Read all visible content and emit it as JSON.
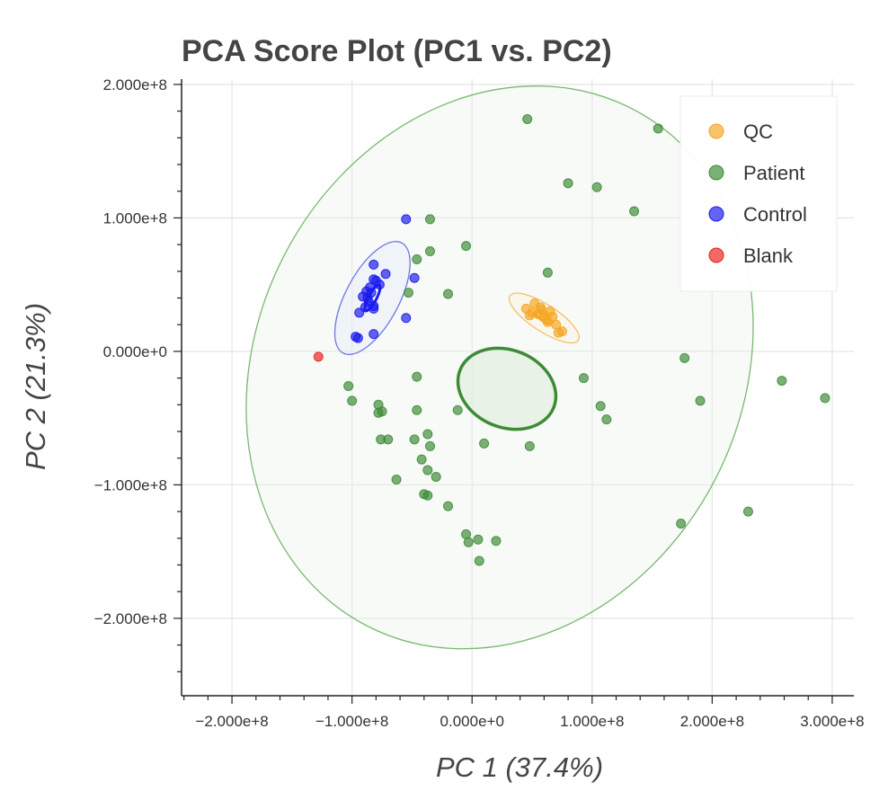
{
  "chart_data": {
    "type": "scatter",
    "title": "PCA Score Plot (PC1 vs. PC2)",
    "xlabel": "PC 1 (37.4%)",
    "ylabel": "PC 2 (21.3%)",
    "xlim": [
      -242000000,
      318000000
    ],
    "ylim": [
      -258000000,
      204000000
    ],
    "x_ticks": [
      -200000000,
      -100000000,
      0,
      100000000,
      200000000,
      300000000
    ],
    "x_tick_labels": [
      "−2.000e+8",
      "−1.000e+8",
      "0.000e+0",
      "1.000e+8",
      "2.000e+8",
      "3.000e+8"
    ],
    "y_ticks": [
      200000000,
      100000000,
      0,
      -100000000,
      -200000000
    ],
    "y_tick_labels": [
      "2.000e+8",
      "1.000e+8",
      "0.000e+0",
      "−1.000e+8",
      "−2.000e+8"
    ],
    "grid": true,
    "legend_position": "top-right",
    "series": [
      {
        "name": "QC",
        "color": "#f5a623",
        "points": [
          [
            45,
            32
          ],
          [
            50,
            29
          ],
          [
            52,
            36
          ],
          [
            55,
            28
          ],
          [
            58,
            31
          ],
          [
            60,
            27
          ],
          [
            62,
            24
          ],
          [
            65,
            30
          ],
          [
            63,
            22
          ],
          [
            67,
            26
          ],
          [
            70,
            20
          ],
          [
            72,
            14
          ],
          [
            75,
            15
          ],
          [
            48,
            27
          ],
          [
            57,
            33
          ]
        ]
      },
      {
        "name": "Patient",
        "color": "#3d8b37",
        "points": [
          [
            46,
            174
          ],
          [
            155,
            167
          ],
          [
            80,
            126
          ],
          [
            104,
            123
          ],
          [
            135,
            105
          ],
          [
            -35,
            99
          ],
          [
            -5,
            79
          ],
          [
            -35,
            75
          ],
          [
            -46,
            69
          ],
          [
            63,
            59
          ],
          [
            -53,
            44
          ],
          [
            -20,
            43
          ],
          [
            -103,
            -26
          ],
          [
            -100,
            -37
          ],
          [
            -78,
            -40
          ],
          [
            -75,
            -45
          ],
          [
            -78,
            -46
          ],
          [
            -46,
            -19
          ],
          [
            -46,
            -44
          ],
          [
            -37,
            -62
          ],
          [
            -48,
            -66
          ],
          [
            -35,
            -71
          ],
          [
            -76,
            -66
          ],
          [
            -70,
            -66
          ],
          [
            -42,
            -81
          ],
          [
            -37,
            -89
          ],
          [
            -30,
            -94
          ],
          [
            -63,
            -96
          ],
          [
            -40,
            -107
          ],
          [
            -37,
            -108
          ],
          [
            -20,
            -116
          ],
          [
            -5,
            -137
          ],
          [
            -3,
            -143
          ],
          [
            5,
            -141
          ],
          [
            20,
            -142
          ],
          [
            6,
            -157
          ],
          [
            -12,
            -44
          ],
          [
            10,
            -69
          ],
          [
            48,
            -71
          ],
          [
            93,
            -20
          ],
          [
            107,
            -41
          ],
          [
            112,
            -51
          ],
          [
            177,
            -5
          ],
          [
            190,
            -37
          ],
          [
            258,
            -22
          ],
          [
            294,
            -35
          ],
          [
            174,
            -129
          ],
          [
            230,
            -120
          ]
        ]
      },
      {
        "name": "Control",
        "color": "#1a1aee",
        "points": [
          [
            -55,
            99
          ],
          [
            -48,
            55
          ],
          [
            -82,
            65
          ],
          [
            -77,
            50
          ],
          [
            -80,
            53
          ],
          [
            -82,
            54
          ],
          [
            -85,
            48
          ],
          [
            -88,
            45
          ],
          [
            -84,
            44
          ],
          [
            -87,
            40
          ],
          [
            -91,
            41
          ],
          [
            -86,
            37
          ],
          [
            -82,
            32
          ],
          [
            -89,
            33
          ],
          [
            -94,
            29
          ],
          [
            -82,
            34
          ],
          [
            -55,
            25
          ],
          [
            -97,
            11
          ],
          [
            -95,
            10
          ],
          [
            -82,
            13
          ],
          [
            -72,
            58
          ]
        ]
      },
      {
        "name": "Blank",
        "color": "#e8221c",
        "points": [
          [
            -128,
            -4
          ]
        ]
      }
    ],
    "ellipses": [
      {
        "series": "Patient",
        "cx": 23,
        "cy": -12,
        "rx": 242,
        "ry": 182,
        "angle_deg": 63,
        "stroke": "#7ab872",
        "fill": "#e8f2e6",
        "fill_opacity": 0.35,
        "stroke_width": 1.3
      },
      {
        "series": "Control",
        "cx": -83,
        "cy": 40,
        "rx": 52,
        "ry": 20,
        "angle_deg": 62,
        "stroke": "#6f78e6",
        "fill": "#e6e8fb",
        "fill_opacity": 0.4,
        "stroke_width": 1.3
      },
      {
        "series": "Control",
        "cx": -83,
        "cy": 40,
        "rx": 12,
        "ry": 3,
        "angle_deg": 62,
        "stroke": "#1a1aee",
        "fill": "none",
        "fill_opacity": 0,
        "stroke_width": 3
      },
      {
        "series": "QC",
        "cx": 60,
        "cy": 25,
        "rx": 34,
        "ry": 10,
        "angle_deg": -33,
        "stroke": "#f3c06a",
        "fill": "#fdf1dc",
        "fill_opacity": 0.4,
        "stroke_width": 1.3
      },
      {
        "series": "QC",
        "cx": 60,
        "cy": 25,
        "rx": 8,
        "ry": 2.5,
        "angle_deg": -33,
        "stroke": "#f5a623",
        "fill": "none",
        "fill_opacity": 0,
        "stroke_width": 2.5
      },
      {
        "series": "Patient",
        "cx": 29,
        "cy": -28,
        "rx": 42,
        "ry": 29,
        "angle_deg": -22,
        "stroke": "#3d8b37",
        "fill": "#e4efe2",
        "fill_opacity": 0.75,
        "stroke_width": 3.5
      }
    ],
    "point_unit_scale": 1000000
  }
}
